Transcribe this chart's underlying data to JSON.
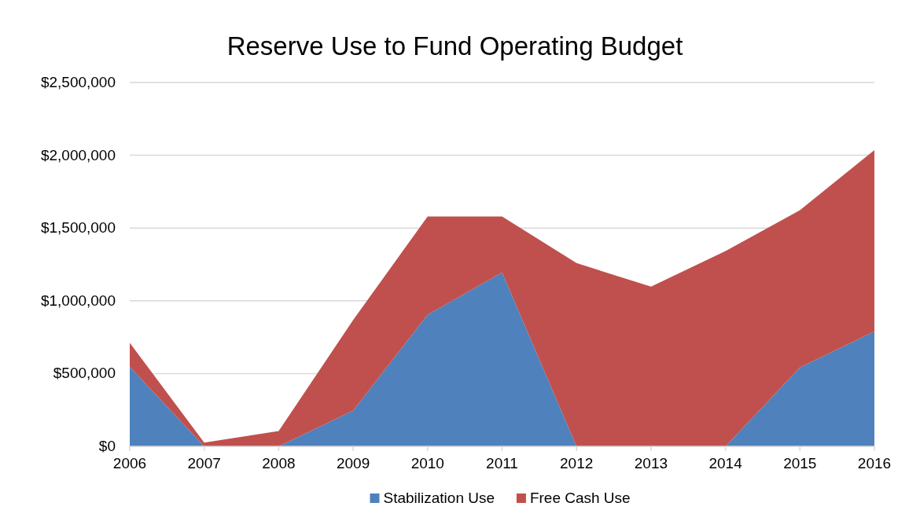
{
  "chart_data": {
    "type": "area",
    "title": "Reserve Use to Fund Operating Budget",
    "stacked": true,
    "categories": [
      "2006",
      "2007",
      "2008",
      "2009",
      "2010",
      "2011",
      "2012",
      "2013",
      "2014",
      "2015",
      "2016"
    ],
    "series": [
      {
        "name": "Stabilization Use",
        "color": "#4f81bd",
        "values": [
          547000,
          0,
          0,
          246000,
          905000,
          1195000,
          0,
          0,
          0,
          542000,
          790000
        ]
      },
      {
        "name": "Free Cash Use",
        "color": "#c0504d",
        "values": [
          164000,
          26000,
          105000,
          622000,
          675000,
          385000,
          1259000,
          1097000,
          1342000,
          1081000,
          1246000
        ]
      }
    ],
    "ylim": [
      0,
      2500000
    ],
    "yticks": [
      {
        "value": 0,
        "label": "$0"
      },
      {
        "value": 500000,
        "label": "$500,000"
      },
      {
        "value": 1000000,
        "label": "$1,000,000"
      },
      {
        "value": 1500000,
        "label": "$1,500,000"
      },
      {
        "value": 2000000,
        "label": "$2,000,000"
      },
      {
        "value": 2500000,
        "label": "$2,500,000"
      }
    ],
    "grid": "y",
    "legend": "bottom"
  }
}
